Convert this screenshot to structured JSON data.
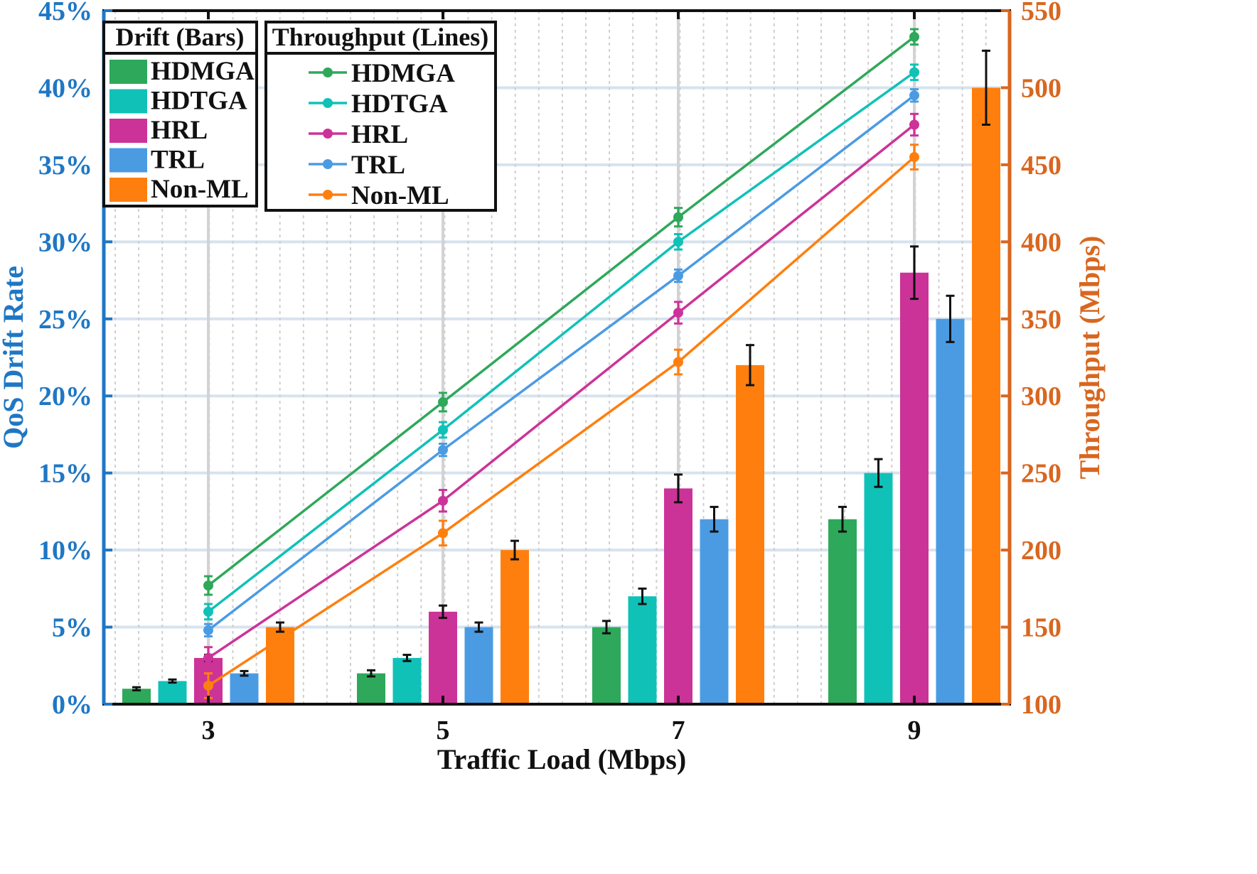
{
  "chart_data": {
    "type": "bar",
    "xlabel": "Traffic Load (Mbps)",
    "categories": [
      "3",
      "5",
      "7",
      "9"
    ],
    "left_axis": {
      "label": "QoS Drift Rate",
      "ylim": [
        0,
        45
      ],
      "ticks": [
        "0%",
        "5%",
        "10%",
        "15%",
        "20%",
        "25%",
        "30%",
        "35%",
        "40%",
        "45%"
      ],
      "color": "#1f77c4"
    },
    "right_axis": {
      "label": "Throughput (Mbps)",
      "ylim": [
        100,
        550
      ],
      "ticks": [
        "100",
        "150",
        "200",
        "250",
        "300",
        "350",
        "400",
        "450",
        "500",
        "550"
      ],
      "color": "#d9661f"
    },
    "bar_legend_title": "Drift (Bars)",
    "line_legend_title": "Throughput (Lines)",
    "grid": true,
    "legend_position": "top-left",
    "bar_series": [
      {
        "name": "HDMGA",
        "color": "#2ea85a",
        "values": [
          1,
          2,
          5,
          12
        ],
        "errors": [
          0.1,
          0.2,
          0.4,
          0.8
        ]
      },
      {
        "name": "HDTGA",
        "color": "#10c1b7",
        "values": [
          1.5,
          3,
          7,
          15
        ],
        "errors": [
          0.1,
          0.2,
          0.5,
          0.9
        ]
      },
      {
        "name": "HRL",
        "color": "#cc3399",
        "values": [
          3,
          6,
          14,
          28
        ],
        "errors": [
          0.2,
          0.4,
          0.9,
          1.7
        ]
      },
      {
        "name": "TRL",
        "color": "#4b9be3",
        "values": [
          2,
          5,
          12,
          25
        ],
        "errors": [
          0.15,
          0.3,
          0.8,
          1.5
        ]
      },
      {
        "name": "Non-ML",
        "color": "#ff7f0e",
        "values": [
          5,
          10,
          22,
          40
        ],
        "errors": [
          0.3,
          0.6,
          1.3,
          2.4
        ]
      }
    ],
    "line_series": [
      {
        "name": "HDMGA",
        "color": "#2ea85a",
        "values": [
          177,
          296,
          416,
          533
        ],
        "errors": [
          6,
          6,
          6,
          5
        ]
      },
      {
        "name": "HDTGA",
        "color": "#10c1b7",
        "values": [
          160,
          278,
          400,
          510
        ],
        "errors": [
          5,
          5,
          5,
          5
        ]
      },
      {
        "name": "HRL",
        "color": "#cc3399",
        "values": [
          130,
          232,
          354,
          476
        ],
        "errors": [
          7,
          7,
          7,
          7
        ]
      },
      {
        "name": "TRL",
        "color": "#4b9be3",
        "values": [
          148,
          265,
          378,
          495
        ],
        "errors": [
          4,
          4,
          4,
          4
        ]
      },
      {
        "name": "Non-ML",
        "color": "#ff7f0e",
        "values": [
          112,
          211,
          322,
          455
        ],
        "errors": [
          8,
          8,
          8,
          8
        ]
      }
    ]
  }
}
